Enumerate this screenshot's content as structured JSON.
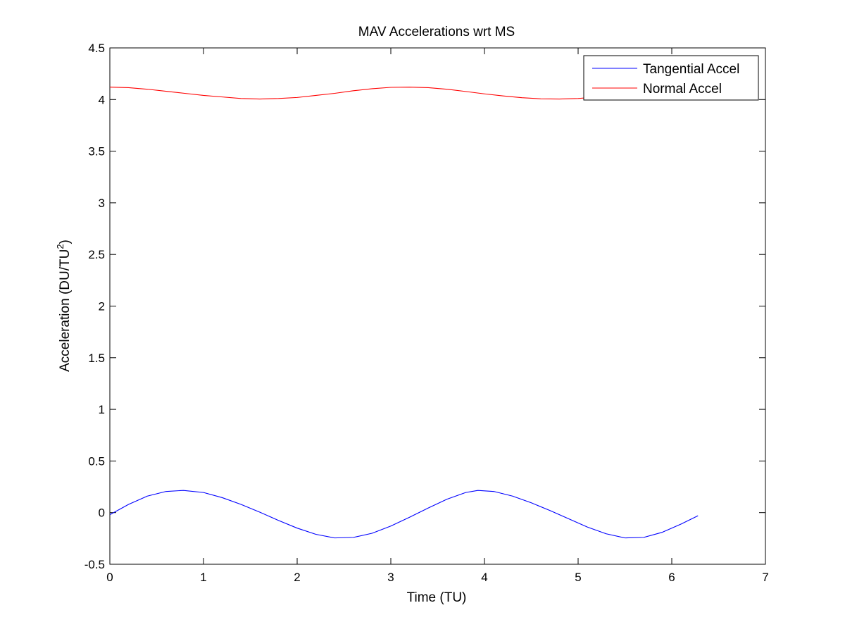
{
  "chart_data": {
    "type": "line",
    "title": "MAV Accelerations wrt MS",
    "xlabel": "Time (TU)",
    "ylabel": "Acceleration (DU/TU",
    "ylabel_superscript": "2",
    "ylabel_suffix": ")",
    "xlim": [
      0,
      7
    ],
    "ylim": [
      -0.5,
      4.5
    ],
    "xticks": [
      "0",
      "1",
      "2",
      "3",
      "4",
      "5",
      "6",
      "7"
    ],
    "yticks": [
      "-0.5",
      "0",
      "0.5",
      "1",
      "1.5",
      "2",
      "2.5",
      "3",
      "3.5",
      "4",
      "4.5"
    ],
    "grid": false,
    "legend_position": "top-right",
    "series": [
      {
        "name": "Tangential Accel",
        "color": "#0000ff",
        "x": [
          0,
          0.2,
          0.4,
          0.6,
          0.785,
          1.0,
          1.2,
          1.4,
          1.6,
          1.8,
          2.0,
          2.2,
          2.4,
          2.6,
          2.8,
          3.0,
          3.2,
          3.4,
          3.6,
          3.8,
          3.93,
          4.1,
          4.3,
          4.5,
          4.7,
          4.9,
          5.1,
          5.3,
          5.5,
          5.7,
          5.9,
          6.1,
          6.28
        ],
        "y": [
          -0.02,
          0.08,
          0.16,
          0.205,
          0.215,
          0.195,
          0.145,
          0.08,
          0.005,
          -0.075,
          -0.15,
          -0.21,
          -0.245,
          -0.24,
          -0.2,
          -0.13,
          -0.045,
          0.045,
          0.13,
          0.195,
          0.215,
          0.205,
          0.16,
          0.095,
          0.02,
          -0.06,
          -0.14,
          -0.205,
          -0.245,
          -0.24,
          -0.19,
          -0.11,
          -0.03
        ]
      },
      {
        "name": "Normal Accel",
        "color": "#ff0000",
        "x": [
          0,
          0.2,
          0.4,
          0.6,
          0.8,
          1.0,
          1.2,
          1.4,
          1.6,
          1.8,
          2.0,
          2.2,
          2.4,
          2.6,
          2.8,
          3.0,
          3.2,
          3.4,
          3.6,
          3.8,
          4.0,
          4.2,
          4.4,
          4.6,
          4.8,
          5.0,
          5.2,
          5.4,
          5.6,
          5.8,
          6.0,
          6.2,
          6.28
        ],
        "y": [
          4.12,
          4.115,
          4.1,
          4.08,
          4.06,
          4.04,
          4.025,
          4.01,
          4.005,
          4.01,
          4.02,
          4.04,
          4.06,
          4.085,
          4.105,
          4.118,
          4.12,
          4.115,
          4.1,
          4.078,
          4.055,
          4.035,
          4.018,
          4.007,
          4.005,
          4.01,
          4.025,
          4.045,
          4.068,
          4.09,
          4.108,
          4.118,
          4.12
        ]
      }
    ]
  }
}
